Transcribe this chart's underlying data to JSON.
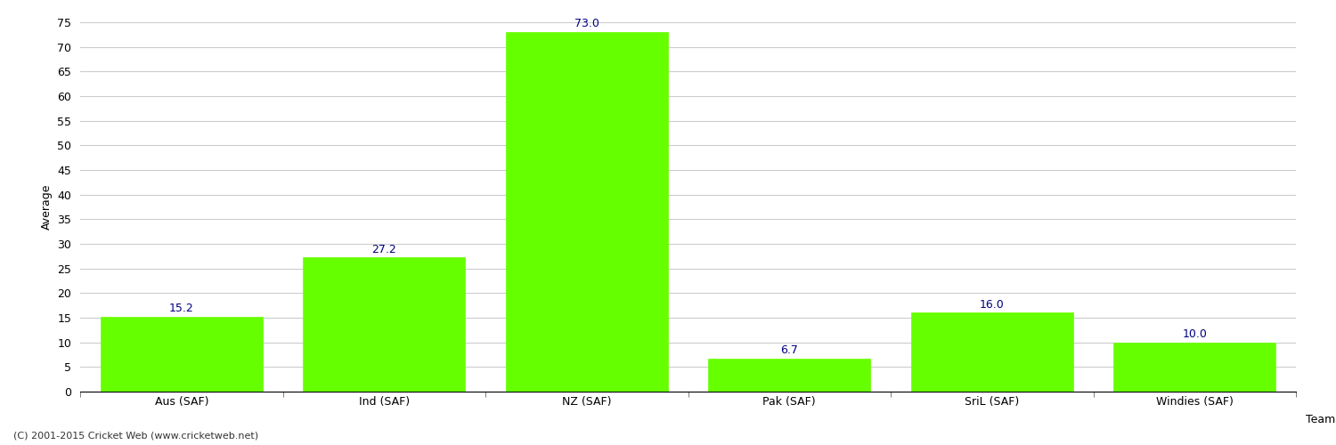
{
  "xlabel": "Team",
  "ylabel": "Average",
  "categories": [
    "Aus (SAF)",
    "Ind (SAF)",
    "NZ (SAF)",
    "Pak (SAF)",
    "SriL (SAF)",
    "Windies (SAF)"
  ],
  "values": [
    15.2,
    27.2,
    73.0,
    6.7,
    16.0,
    10.0
  ],
  "bar_color": "#66ff00",
  "bar_edge_color": "#66ff00",
  "label_color": "#000080",
  "label_fontsize": 9,
  "ylabel_fontsize": 9,
  "xlabel_fontsize": 9,
  "tick_fontsize": 9,
  "ylim": [
    0,
    75
  ],
  "yticks": [
    0,
    5,
    10,
    15,
    20,
    25,
    30,
    35,
    40,
    45,
    50,
    55,
    60,
    65,
    70,
    75
  ],
  "background_color": "#ffffff",
  "grid_color": "#cccccc",
  "footer_text": "(C) 2001-2015 Cricket Web (www.cricketweb.net)",
  "footer_fontsize": 8,
  "footer_color": "#333333",
  "bar_width": 0.8
}
